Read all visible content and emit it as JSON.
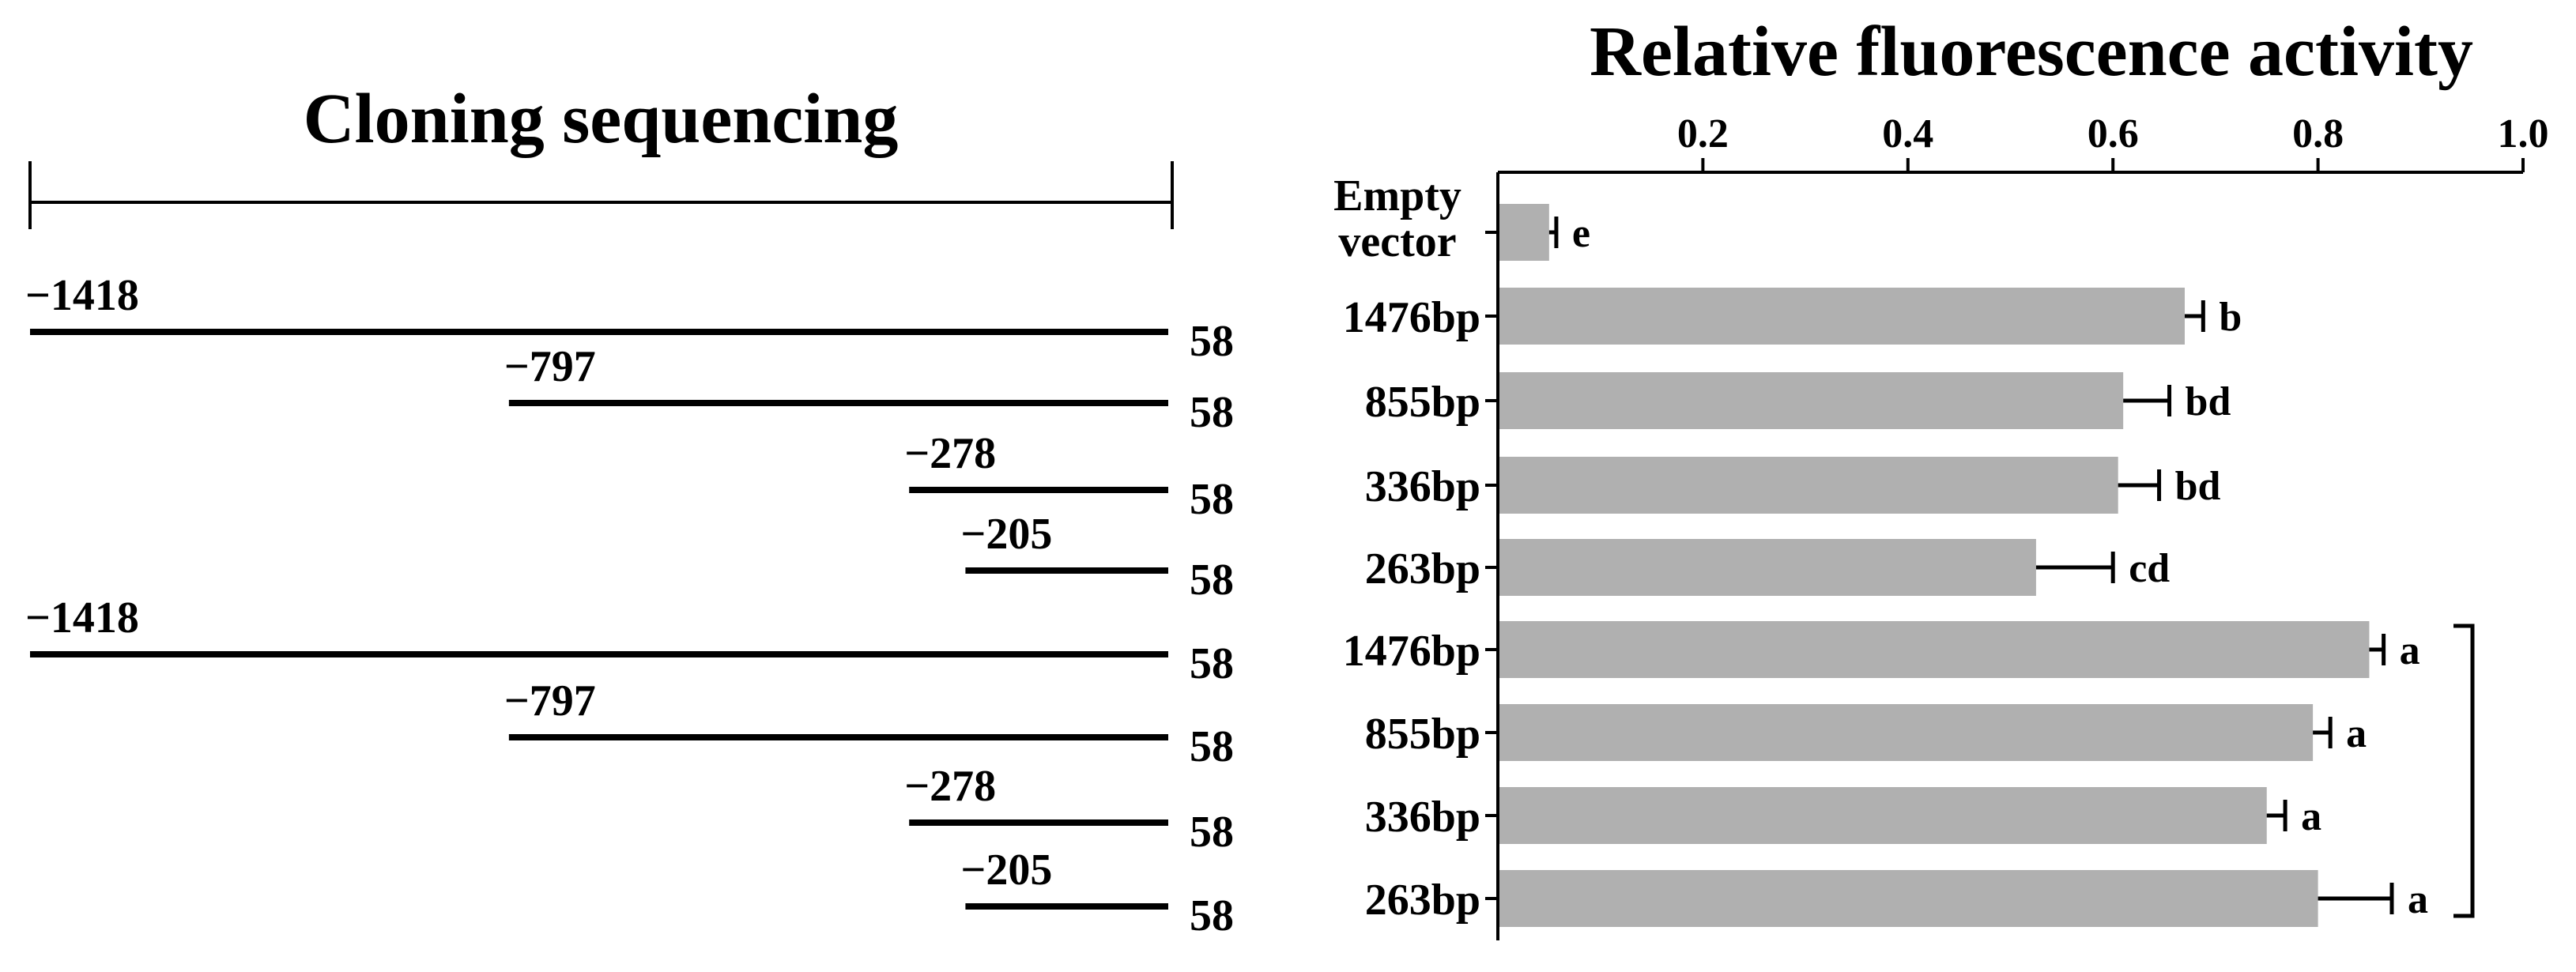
{
  "left_panel": {
    "title": "Cloning sequencing",
    "end_label": "58",
    "constructs": [
      {
        "start": "−1418",
        "start_value": -1418,
        "end": 58
      },
      {
        "start": "−797",
        "start_value": -797,
        "end": 58
      },
      {
        "start": "−278",
        "start_value": -278,
        "end": 58
      },
      {
        "start": "−205",
        "start_value": -205,
        "end": 58
      },
      {
        "start": "−1418",
        "start_value": -1418,
        "end": 58
      },
      {
        "start": "−797",
        "start_value": -797,
        "end": 58
      },
      {
        "start": "−278",
        "start_value": -278,
        "end": 58
      },
      {
        "start": "−205",
        "start_value": -205,
        "end": 58
      }
    ]
  },
  "chart_data": {
    "type": "bar",
    "orientation": "horizontal",
    "title": "Relative fluorescence activity",
    "xlabel": "",
    "ylabel": "",
    "xlim": [
      0,
      1.0
    ],
    "xticks": [
      0.2,
      0.4,
      0.6,
      0.8,
      1.0
    ],
    "xtick_labels": [
      "0.2",
      "0.4",
      "0.6",
      "0.8",
      "1.0"
    ],
    "axis_position": "top",
    "grid": false,
    "categories": [
      "Empty vector",
      "1476bp",
      "855bp",
      "336bp",
      "263bp",
      "1476bp",
      "855bp",
      "336bp",
      "263bp"
    ],
    "category_lines": [
      [
        "Empty",
        "vector"
      ],
      [
        "1476bp"
      ],
      [
        "855bp"
      ],
      [
        "336bp"
      ],
      [
        "263bp"
      ],
      [
        "1476bp"
      ],
      [
        "855bp"
      ],
      [
        "336bp"
      ],
      [
        "263bp"
      ]
    ],
    "values": [
      0.05,
      0.67,
      0.61,
      0.605,
      0.525,
      0.85,
      0.795,
      0.75,
      0.8
    ],
    "errors": [
      0.007,
      0.018,
      0.045,
      0.04,
      0.075,
      0.014,
      0.017,
      0.018,
      0.072
    ],
    "significance": [
      "e",
      "b",
      "bd",
      "bd",
      "cd",
      "a",
      "a",
      "a",
      "a"
    ],
    "bracket_groups": [
      [
        5,
        8
      ]
    ],
    "bar_color": "#b0b0b0"
  }
}
